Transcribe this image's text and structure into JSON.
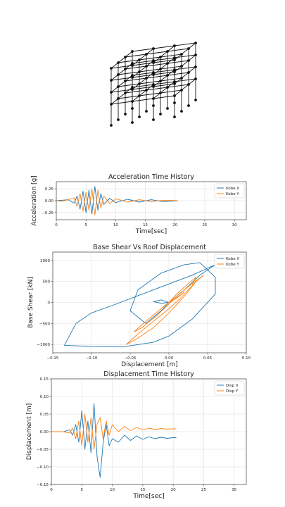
{
  "structure": {
    "description_hidden": "",
    "grid_levels": 4,
    "grid_x_bays": 3,
    "grid_y_bays": 3
  },
  "chart_data": [
    {
      "type": "line",
      "title": "Acceleration Time History",
      "xlabel": "Time[sec]",
      "ylabel": "Acceleration [g]",
      "xlim": [
        0,
        32
      ],
      "ylim": [
        -0.4,
        0.4
      ],
      "xticks": [
        0,
        5,
        10,
        15,
        20,
        25,
        30
      ],
      "yticks": [
        -0.25,
        0.0,
        0.25
      ],
      "ytick_labels": [
        "−0.25",
        "0.00",
        "0.25"
      ],
      "grid": true,
      "legend": "top-right",
      "series": [
        {
          "name": "Kobe X",
          "color": "#1f77b4",
          "x": [
            0,
            1,
            2,
            3,
            3.5,
            4,
            4.5,
            5,
            5.5,
            6,
            6.5,
            7,
            7.5,
            8,
            9,
            10,
            12,
            14,
            16,
            18,
            20.5
          ],
          "y": [
            0,
            0.01,
            0.02,
            -0.05,
            0.1,
            -0.18,
            0.2,
            -0.25,
            0.22,
            -0.28,
            0.3,
            -0.2,
            0.15,
            -0.08,
            0.05,
            -0.04,
            0.03,
            -0.03,
            0.02,
            -0.02,
            0.0
          ]
        },
        {
          "name": "Kobe Y",
          "color": "#ff7f0e",
          "x": [
            0,
            1,
            2,
            3,
            3.5,
            4,
            4.5,
            5,
            5.5,
            6,
            6.5,
            7,
            7.5,
            8,
            9,
            10,
            12,
            14,
            16,
            18,
            20.5
          ],
          "y": [
            0,
            -0.01,
            0.02,
            0.06,
            -0.12,
            0.15,
            -0.22,
            0.18,
            -0.2,
            0.25,
            -0.3,
            0.22,
            -0.15,
            0.1,
            -0.06,
            0.04,
            -0.03,
            0.02,
            -0.02,
            0.01,
            0.0
          ]
        }
      ]
    },
    {
      "type": "line",
      "title": "Base Shear Vs Roof Displacement",
      "xlabel": "Displacement [m]",
      "ylabel": "Base Shear [kN]",
      "xlim": [
        -0.15,
        0.1
      ],
      "ylim": [
        -1200,
        1200
      ],
      "xticks": [
        -0.15,
        -0.1,
        -0.05,
        0.0,
        0.05,
        0.1
      ],
      "xtick_labels": [
        "−0.15",
        "−0.10",
        "−0.05",
        "0.00",
        "0.05",
        "0.10"
      ],
      "yticks": [
        -1000,
        -500,
        0,
        500,
        1000
      ],
      "ytick_labels": [
        "−1000",
        "−500",
        "0",
        "500",
        "1000"
      ],
      "grid": true,
      "legend": "top-right",
      "series": [
        {
          "name": "Kobe X",
          "color": "#1f77b4",
          "x": [
            0,
            0.02,
            0.04,
            0.06,
            0.078,
            0.06,
            0.03,
            -0.02,
            -0.07,
            -0.1,
            -0.12,
            -0.135,
            -0.1,
            -0.06,
            -0.02,
            0.0,
            0.03,
            0.06,
            0.06,
            0.04,
            0.02,
            -0.01,
            -0.04,
            -0.05,
            -0.03,
            -0.01,
            0.0,
            -0.01,
            -0.02,
            -0.01,
            0.0
          ],
          "y": [
            0,
            300,
            650,
            900,
            1050,
            900,
            650,
            300,
            -50,
            -250,
            -500,
            -1020,
            -1050,
            -1060,
            -950,
            -800,
            -400,
            200,
            600,
            950,
            900,
            700,
            300,
            -200,
            -500,
            -200,
            0,
            60,
            20,
            -20,
            0
          ]
        },
        {
          "name": "Kobe Y",
          "color": "#ff7f0e",
          "x": [
            0,
            0.01,
            0.025,
            0.035,
            0.03,
            0.015,
            0.0,
            -0.02,
            -0.04,
            -0.055,
            -0.04,
            -0.02,
            0.0,
            0.02,
            0.035,
            0.045,
            0.03,
            0.01,
            -0.01,
            -0.03,
            -0.045,
            -0.035,
            -0.015,
            0.005,
            0.02,
            0.01,
            0.0
          ],
          "y": [
            0,
            200,
            450,
            600,
            400,
            100,
            -150,
            -450,
            -750,
            -1000,
            -850,
            -600,
            -250,
            150,
            500,
            650,
            450,
            150,
            -150,
            -450,
            -700,
            -600,
            -300,
            50,
            250,
            100,
            0
          ]
        }
      ]
    },
    {
      "type": "line",
      "title": "Displacement Time History",
      "xlabel": "Time[sec]",
      "ylabel": "Displacement [m]",
      "xlim": [
        0,
        32
      ],
      "ylim": [
        -0.15,
        0.15
      ],
      "xticks": [
        0,
        5,
        10,
        15,
        20,
        25,
        30
      ],
      "yticks": [
        -0.15,
        -0.1,
        -0.05,
        0.0,
        0.05,
        0.1,
        0.15
      ],
      "ytick_labels": [
        "−0.15",
        "−0.10",
        "−0.05",
        "0.00",
        "0.05",
        "0.10",
        "0.15"
      ],
      "grid": true,
      "legend": "top-right",
      "series": [
        {
          "name": "Disp X",
          "color": "#1f77b4",
          "x": [
            0,
            2,
            3,
            3.5,
            4,
            4.5,
            5,
            5.5,
            6,
            6.5,
            7,
            7.5,
            8,
            8.5,
            9,
            9.5,
            10,
            11,
            12,
            13,
            14,
            15,
            16,
            17,
            18,
            19,
            20,
            20.5
          ],
          "y": [
            0,
            0,
            0.005,
            -0.01,
            0.02,
            -0.03,
            0.06,
            -0.05,
            0.03,
            -0.06,
            0.08,
            -0.07,
            -0.13,
            -0.03,
            0.02,
            -0.04,
            -0.02,
            -0.03,
            -0.01,
            -0.025,
            -0.012,
            -0.022,
            -0.015,
            -0.02,
            -0.016,
            -0.019,
            -0.017,
            -0.017
          ]
        },
        {
          "name": "Disp Y",
          "color": "#ff7f0e",
          "x": [
            0,
            2,
            3,
            3.5,
            4,
            4.5,
            5,
            5.5,
            6,
            6.5,
            7,
            7.5,
            8,
            8.5,
            9,
            9.5,
            10,
            11,
            12,
            13,
            14,
            15,
            16,
            17,
            18,
            19,
            20,
            20.5
          ],
          "y": [
            0,
            0,
            -0.004,
            0.01,
            -0.02,
            0.03,
            -0.04,
            0.05,
            -0.03,
            0.04,
            -0.05,
            0.02,
            0.04,
            -0.02,
            0.03,
            -0.01,
            0.02,
            0.0,
            0.015,
            0.003,
            0.012,
            0.005,
            0.01,
            0.006,
            0.009,
            0.007,
            0.008,
            0.008
          ]
        }
      ]
    }
  ]
}
